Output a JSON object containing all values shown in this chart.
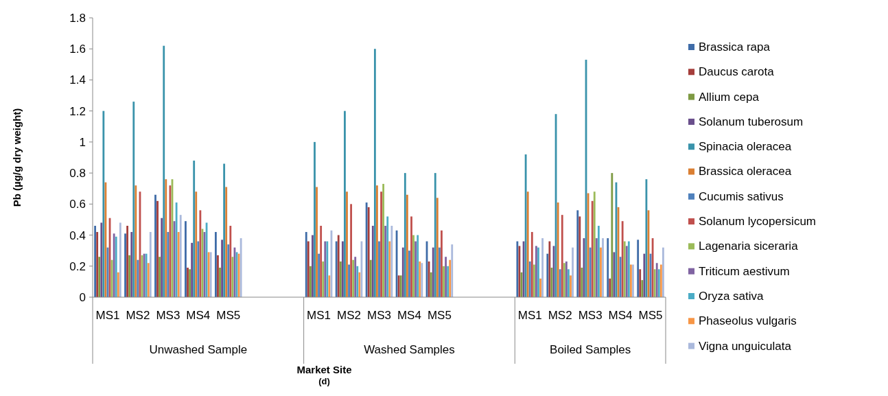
{
  "chart_data": {
    "type": "bar",
    "xlabel": "Market Site",
    "ylabel": "Pb (µg/g dry weight)",
    "categories": [
      "MS1",
      "MS2",
      "MS3",
      "MS4",
      "MS5",
      null,
      null,
      "MS1",
      "MS2",
      "MS3",
      "MS4",
      "MS5",
      null,
      null,
      "MS1",
      "MS2",
      "MS3",
      "MS4",
      "MS5"
    ],
    "annotations": [
      "Unwashed Sample",
      "Washed Samples",
      "Boiled Samples",
      "(d)"
    ],
    "ylim": [
      0,
      1.8
    ],
    "yticks": [
      0,
      0.2,
      0.4,
      0.6,
      0.8,
      1,
      1.2,
      1.4,
      1.6,
      1.8
    ],
    "grid": false,
    "legend": "right",
    "series": [
      {
        "name": "Brassica rapa",
        "color": "#3f6ca8",
        "values": [
          0.46,
          0.41,
          0.66,
          0.49,
          0.42,
          null,
          null,
          0.42,
          0.36,
          0.61,
          0.43,
          0.36,
          null,
          null,
          0.36,
          0.28,
          0.56,
          0.38,
          0.37
        ]
      },
      {
        "name": "Daucus carota",
        "color": "#a53e3b",
        "values": [
          0.42,
          0.46,
          0.62,
          0.19,
          0.27,
          null,
          null,
          0.36,
          0.4,
          0.58,
          0.14,
          0.23,
          null,
          null,
          0.33,
          0.36,
          0.52,
          0.12,
          0.18
        ]
      },
      {
        "name": "Allium cepa",
        "color": "#7e9a43",
        "values": [
          0.26,
          0.27,
          0.26,
          0.18,
          0.19,
          null,
          null,
          0.2,
          0.23,
          0.24,
          0.14,
          0.16,
          null,
          null,
          0.16,
          0.19,
          0.19,
          0.8,
          0.11
        ]
      },
      {
        "name": "Solanum tuberosum",
        "color": "#6a4f8c",
        "values": [
          0.48,
          0.42,
          0.51,
          0.35,
          0.37,
          null,
          null,
          0.4,
          0.36,
          0.46,
          0.32,
          0.32,
          null,
          null,
          0.36,
          0.33,
          0.38,
          0.29,
          0.28
        ]
      },
      {
        "name": "Spinacia oleracea",
        "color": "#3a93ab",
        "values": [
          1.2,
          1.26,
          1.62,
          0.88,
          0.86,
          null,
          null,
          1.0,
          1.2,
          1.6,
          0.8,
          0.8,
          null,
          null,
          0.92,
          1.18,
          1.53,
          0.74,
          0.76
        ]
      },
      {
        "name": "Brassica oleracea",
        "color": "#da7f33",
        "values": [
          0.74,
          0.72,
          0.76,
          0.68,
          0.71,
          null,
          null,
          0.71,
          0.68,
          0.72,
          0.66,
          0.64,
          null,
          null,
          0.68,
          0.61,
          0.67,
          0.58,
          0.56
        ]
      },
      {
        "name": "Cucumis sativus",
        "color": "#4f81bd",
        "values": [
          0.32,
          0.24,
          0.42,
          0.36,
          0.34,
          null,
          null,
          0.28,
          0.21,
          0.36,
          0.3,
          0.32,
          null,
          null,
          0.23,
          0.18,
          0.32,
          0.26,
          0.28
        ]
      },
      {
        "name": "Solanum lycopersicum",
        "color": "#c0504d",
        "values": [
          0.51,
          0.68,
          0.72,
          0.56,
          0.46,
          null,
          null,
          0.46,
          0.6,
          0.68,
          0.52,
          0.43,
          null,
          null,
          0.42,
          0.53,
          0.62,
          0.49,
          0.38
        ]
      },
      {
        "name": "Lagenaria siceraria",
        "color": "#9bbb59",
        "values": [
          0.24,
          0.27,
          0.76,
          0.44,
          0.26,
          null,
          null,
          0.23,
          0.24,
          0.73,
          0.4,
          0.2,
          null,
          null,
          0.21,
          0.22,
          0.68,
          0.36,
          0.18
        ]
      },
      {
        "name": "Triticum aestivum",
        "color": "#8064a2",
        "values": [
          0.41,
          0.28,
          0.49,
          0.42,
          0.32,
          null,
          null,
          0.36,
          0.26,
          0.46,
          0.36,
          0.26,
          null,
          null,
          0.33,
          0.23,
          0.38,
          0.33,
          0.22
        ]
      },
      {
        "name": "Oryza sativa",
        "color": "#4bacc6",
        "values": [
          0.39,
          0.28,
          0.61,
          0.48,
          0.29,
          null,
          null,
          0.36,
          0.2,
          0.52,
          0.4,
          0.2,
          null,
          null,
          0.32,
          0.18,
          0.46,
          0.36,
          0.18
        ]
      },
      {
        "name": "Phaseolus vulgaris",
        "color": "#f79646",
        "values": [
          0.16,
          0.22,
          0.42,
          0.29,
          0.28,
          null,
          null,
          0.14,
          0.16,
          0.36,
          0.23,
          0.24,
          null,
          null,
          0.12,
          0.14,
          0.32,
          0.21,
          0.21
        ]
      },
      {
        "name": "Vigna unguiculata",
        "color": "#aab9dc",
        "values": [
          0.48,
          0.42,
          0.53,
          0.29,
          0.38,
          null,
          null,
          0.43,
          0.36,
          0.46,
          0.22,
          0.34,
          null,
          null,
          0.38,
          0.32,
          0.38,
          0.21,
          0.32
        ]
      }
    ]
  }
}
